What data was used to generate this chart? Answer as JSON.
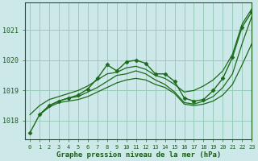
{
  "xlabel": "Graphe pression niveau de la mer (hPa)",
  "background_color": "#cce8e8",
  "grid_color": "#99ccbb",
  "line_color": "#1a6b1a",
  "xlim": [
    -0.5,
    23
  ],
  "ylim": [
    1017.4,
    1021.9
  ],
  "yticks": [
    1018,
    1019,
    1020,
    1021
  ],
  "xticks": [
    0,
    1,
    2,
    3,
    4,
    5,
    6,
    7,
    8,
    9,
    10,
    11,
    12,
    13,
    14,
    15,
    16,
    17,
    18,
    19,
    20,
    21,
    22,
    23
  ],
  "font_color": "#1a5c1a",
  "series": [
    {
      "x": [
        0,
        1,
        2,
        3,
        4,
        5,
        6,
        7,
        8,
        9,
        10,
        11,
        12,
        13,
        14,
        15,
        16,
        17,
        18,
        19,
        20,
        21,
        22,
        23
      ],
      "y": [
        1017.6,
        1018.2,
        1018.5,
        1018.65,
        1018.75,
        1018.85,
        1019.05,
        1019.4,
        1019.85,
        1019.65,
        1019.95,
        1020.0,
        1019.9,
        1019.55,
        1019.55,
        1019.3,
        1018.75,
        1018.65,
        1018.7,
        1019.0,
        1019.4,
        1020.1,
        1021.1,
        1021.6
      ],
      "marker": true,
      "linewidth": 1.0
    },
    {
      "x": [
        0,
        1,
        2,
        3,
        4,
        5,
        6,
        7,
        8,
        9,
        10,
        11,
        12,
        13,
        14,
        15,
        16,
        17,
        18,
        19,
        20,
        21,
        22,
        23
      ],
      "y": [
        1018.2,
        1018.5,
        1018.7,
        1018.8,
        1018.9,
        1019.0,
        1019.15,
        1019.35,
        1019.55,
        1019.6,
        1019.75,
        1019.8,
        1019.7,
        1019.5,
        1019.4,
        1019.2,
        1018.95,
        1019.0,
        1019.15,
        1019.35,
        1019.65,
        1020.2,
        1021.2,
        1021.7
      ],
      "marker": false,
      "linewidth": 0.9
    },
    {
      "x": [
        1,
        2,
        3,
        4,
        5,
        6,
        7,
        8,
        9,
        10,
        11,
        12,
        13,
        14,
        15,
        16,
        17,
        18,
        19,
        20,
        21,
        22,
        23
      ],
      "y": [
        1018.2,
        1018.5,
        1018.65,
        1018.75,
        1018.8,
        1018.95,
        1019.1,
        1019.3,
        1019.5,
        1019.55,
        1019.65,
        1019.55,
        1019.35,
        1019.2,
        1018.95,
        1018.6,
        1018.55,
        1018.65,
        1018.8,
        1019.1,
        1019.55,
        1020.55,
        1021.45
      ],
      "marker": false,
      "linewidth": 0.9
    },
    {
      "x": [
        1,
        2,
        3,
        4,
        5,
        6,
        7,
        8,
        9,
        10,
        11,
        12,
        13,
        14,
        15,
        16,
        17,
        18,
        19,
        20,
        21,
        22,
        23
      ],
      "y": [
        1018.2,
        1018.45,
        1018.6,
        1018.65,
        1018.7,
        1018.8,
        1018.95,
        1019.1,
        1019.25,
        1019.35,
        1019.4,
        1019.35,
        1019.2,
        1019.1,
        1018.9,
        1018.55,
        1018.5,
        1018.55,
        1018.65,
        1018.85,
        1019.2,
        1019.85,
        1020.55
      ],
      "marker": false,
      "linewidth": 0.9
    }
  ]
}
